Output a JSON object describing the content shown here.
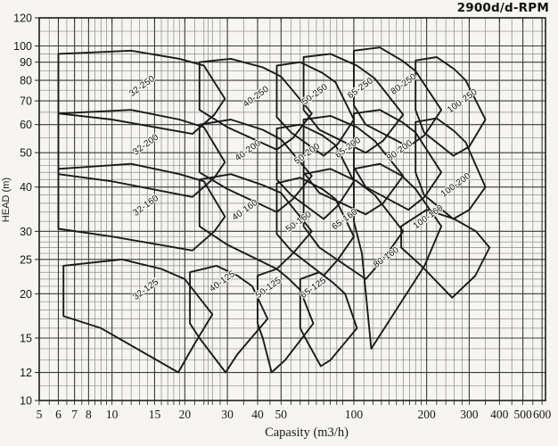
{
  "title": "2900d/d-RPM",
  "colors": {
    "paper": "#f6f5f2",
    "grid_minor": "#8a8a8a",
    "grid_major": "#3a3a3a",
    "frame": "#1f1f1f",
    "curve": "#1a1a1a",
    "text": "#161616"
  },
  "chart_data": {
    "type": "area",
    "subtype": "pump-selection-envelope-chart",
    "title": "2900d/d-RPM",
    "xlabel": "Capasity (m3/h)",
    "ylabel": "HEAD (m)",
    "x_scale": "log",
    "y_scale": "log",
    "xlim": [
      5,
      600
    ],
    "ylim": [
      10,
      120
    ],
    "grid": "on",
    "x_ticks": [
      5,
      6,
      7,
      8,
      10,
      15,
      20,
      30,
      40,
      50,
      100,
      200,
      300,
      400,
      500,
      600
    ],
    "y_ticks": [
      10,
      12,
      15,
      20,
      25,
      30,
      40,
      50,
      60,
      70,
      80,
      90,
      100,
      120
    ],
    "x_minor": [
      5.5,
      6.5,
      7.5,
      8.5,
      9,
      9.5,
      11,
      12,
      13,
      14,
      16,
      17,
      18,
      19,
      22,
      24,
      25,
      26,
      28,
      35,
      45,
      55,
      60,
      65,
      70,
      75,
      80,
      85,
      90,
      110,
      120,
      130,
      140,
      150,
      160,
      170,
      180,
      190,
      220,
      240,
      260,
      280,
      350,
      450,
      550
    ],
    "y_minor": [
      11,
      12,
      13,
      14,
      16,
      17,
      18,
      19,
      21,
      22,
      23,
      24,
      26,
      27,
      28,
      29,
      32,
      34,
      36,
      38,
      42,
      44,
      46,
      48,
      55,
      65,
      75,
      85,
      95,
      110
    ],
    "regions": [
      {
        "label": "32-250",
        "label_pos": [
          13.5,
          76
        ],
        "polygon": [
          [
            6,
            64.5
          ],
          [
            6,
            95
          ],
          [
            12,
            97
          ],
          [
            19,
            92
          ],
          [
            24,
            88
          ],
          [
            29.3,
            71
          ],
          [
            26.5,
            64
          ],
          [
            21.5,
            56.5
          ],
          [
            10,
            62
          ]
        ]
      },
      {
        "label": "40-250",
        "label_pos": [
          40,
          71
        ],
        "polygon": [
          [
            23,
            66
          ],
          [
            23,
            90
          ],
          [
            31,
            92
          ],
          [
            42,
            87
          ],
          [
            50,
            82
          ],
          [
            67,
            64.5
          ],
          [
            56,
            55
          ],
          [
            48,
            51
          ],
          [
            30,
            59
          ]
        ]
      },
      {
        "label": "50-250",
        "label_pos": [
          70,
          72
        ],
        "polygon": [
          [
            48,
            63
          ],
          [
            48,
            88
          ],
          [
            60,
            90
          ],
          [
            74,
            84
          ],
          [
            84,
            79
          ],
          [
            100,
            62
          ],
          [
            86,
            53
          ],
          [
            75,
            49
          ],
          [
            55,
            57
          ]
        ]
      },
      {
        "label": "65-250",
        "label_pos": [
          108,
          75
        ],
        "polygon": [
          [
            62,
            66
          ],
          [
            62,
            93
          ],
          [
            80,
            95
          ],
          [
            103,
            88
          ],
          [
            122,
            81
          ],
          [
            160,
            64
          ],
          [
            132,
            54
          ],
          [
            112,
            50
          ],
          [
            72,
            58
          ]
        ]
      },
      {
        "label": "80-250",
        "label_pos": [
          163,
          77
        ],
        "polygon": [
          [
            100,
            68
          ],
          [
            100,
            97
          ],
          [
            128,
            99
          ],
          [
            158,
            91
          ],
          [
            180,
            85
          ],
          [
            230,
            66
          ],
          [
            196,
            56
          ],
          [
            168,
            52
          ],
          [
            112,
            60
          ]
        ]
      },
      {
        "label": "100-250",
        "label_pos": [
          285,
          69
        ],
        "polygon": [
          [
            180,
            66
          ],
          [
            180,
            91
          ],
          [
            220,
            93
          ],
          [
            260,
            86
          ],
          [
            290,
            80
          ],
          [
            350,
            62
          ],
          [
            300,
            52
          ],
          [
            258,
            49
          ],
          [
            195,
            57
          ]
        ]
      },
      {
        "label": "32-200",
        "label_pos": [
          14,
          52
        ],
        "polygon": [
          [
            6,
            43.5
          ],
          [
            6,
            64.5
          ],
          [
            12,
            66
          ],
          [
            19,
            62
          ],
          [
            24,
            59
          ],
          [
            29.3,
            47
          ],
          [
            26.5,
            42.5
          ],
          [
            21.5,
            37.5
          ],
          [
            10,
            41.5
          ]
        ]
      },
      {
        "label": "40-200",
        "label_pos": [
          37,
          50
        ],
        "polygon": [
          [
            23,
            44
          ],
          [
            23,
            60
          ],
          [
            31,
            62
          ],
          [
            42,
            58
          ],
          [
            50,
            54.5
          ],
          [
            67,
            43
          ],
          [
            56,
            37
          ],
          [
            48,
            34
          ],
          [
            30,
            39.5
          ]
        ]
      },
      {
        "label": "50-200",
        "label_pos": [
          65,
          49
        ],
        "polygon": [
          [
            48,
            42
          ],
          [
            48,
            58.5
          ],
          [
            60,
            60
          ],
          [
            74,
            56
          ],
          [
            84,
            52.5
          ],
          [
            100,
            41.5
          ],
          [
            86,
            35.5
          ],
          [
            75,
            32.5
          ],
          [
            55,
            38
          ]
        ]
      },
      {
        "label": "65-200",
        "label_pos": [
          96,
          51
        ],
        "polygon": [
          [
            62,
            44
          ],
          [
            62,
            62
          ],
          [
            80,
            63.5
          ],
          [
            103,
            59
          ],
          [
            122,
            54
          ],
          [
            160,
            43
          ],
          [
            132,
            36
          ],
          [
            112,
            33.5
          ],
          [
            72,
            38.5
          ]
        ]
      },
      {
        "label": "80-200",
        "label_pos": [
          157,
          50
        ],
        "polygon": [
          [
            100,
            45.5
          ],
          [
            100,
            64.5
          ],
          [
            128,
            66
          ],
          [
            158,
            61
          ],
          [
            180,
            57
          ],
          [
            230,
            44
          ],
          [
            196,
            37.5
          ],
          [
            168,
            34.5
          ],
          [
            112,
            40
          ]
        ]
      },
      {
        "label": "100-200",
        "label_pos": [
          268,
          40
        ],
        "polygon": [
          [
            180,
            44
          ],
          [
            180,
            61
          ],
          [
            220,
            62.5
          ],
          [
            260,
            57.5
          ],
          [
            290,
            53.5
          ],
          [
            350,
            40
          ],
          [
            300,
            34.5
          ],
          [
            258,
            32.5
          ],
          [
            195,
            38
          ]
        ]
      },
      {
        "label": "32-160",
        "label_pos": [
          14,
          35
        ],
        "polygon": [
          [
            6,
            30.5
          ],
          [
            6,
            45
          ],
          [
            12,
            46.5
          ],
          [
            19,
            43.5
          ],
          [
            24,
            41.5
          ],
          [
            29.3,
            33
          ],
          [
            26.5,
            30
          ],
          [
            21.5,
            26.5
          ],
          [
            10,
            29
          ]
        ]
      },
      {
        "label": "40-160",
        "label_pos": [
          36,
          34
        ],
        "polygon": [
          [
            23,
            31
          ],
          [
            23,
            42
          ],
          [
            31,
            43.5
          ],
          [
            42,
            40.5
          ],
          [
            50,
            38.5
          ],
          [
            67,
            30
          ],
          [
            56,
            26
          ],
          [
            48,
            23.5
          ],
          [
            30,
            27.5
          ]
        ]
      },
      {
        "label": "50-160",
        "label_pos": [
          60,
          31.5
        ],
        "polygon": [
          [
            48,
            29.5
          ],
          [
            48,
            41
          ],
          [
            60,
            42.5
          ],
          [
            74,
            39.5
          ],
          [
            84,
            37
          ],
          [
            100,
            29
          ],
          [
            86,
            25
          ],
          [
            75,
            22.5
          ],
          [
            55,
            26.5
          ]
        ]
      },
      {
        "label": "65-160",
        "label_pos": [
          93,
          32
        ],
        "polygon": [
          [
            62,
            31
          ],
          [
            62,
            43.5
          ],
          [
            80,
            45
          ],
          [
            103,
            41.5
          ],
          [
            122,
            38
          ],
          [
            160,
            30
          ],
          [
            132,
            25
          ],
          [
            112,
            22
          ],
          [
            72,
            27
          ]
        ]
      },
      {
        "label": "80-160",
        "label_pos": [
          138,
          25
        ],
        "polygon": [
          [
            100,
            32
          ],
          [
            100,
            45
          ],
          [
            128,
            46.5
          ],
          [
            158,
            43
          ],
          [
            180,
            39.5
          ],
          [
            230,
            31
          ],
          [
            196,
            24
          ],
          [
            118,
            14
          ],
          [
            108,
            26
          ]
        ]
      },
      {
        "label": "100-160",
        "label_pos": [
          206,
          32.5
        ],
        "polygon": [
          [
            157,
            27
          ],
          [
            157,
            31
          ],
          [
            200,
            34.5
          ],
          [
            260,
            32.5
          ],
          [
            320,
            30
          ],
          [
            364,
            27
          ],
          [
            318,
            22.5
          ],
          [
            255,
            19.5
          ],
          [
            190,
            24
          ]
        ]
      },
      {
        "label": "32-125",
        "label_pos": [
          14,
          20.3
        ],
        "polygon": [
          [
            6.3,
            17.3
          ],
          [
            6.3,
            24
          ],
          [
            11,
            25
          ],
          [
            16,
            23.5
          ],
          [
            20,
            22
          ],
          [
            26,
            17.5
          ],
          [
            22,
            14.5
          ],
          [
            18.8,
            12
          ],
          [
            9,
            16
          ]
        ]
      },
      {
        "label": "40-125",
        "label_pos": [
          29,
          21.4
        ],
        "polygon": [
          [
            21,
            16.5
          ],
          [
            21,
            23
          ],
          [
            27,
            24
          ],
          [
            33,
            22.5
          ],
          [
            38,
            21
          ],
          [
            44,
            17
          ],
          [
            33,
            13.5
          ],
          [
            29.5,
            12
          ],
          [
            23,
            15
          ]
        ]
      },
      {
        "label": "50-125",
        "label_pos": [
          45,
          20.5
        ],
        "polygon": [
          [
            40,
            16.5
          ],
          [
            40,
            22.5
          ],
          [
            48,
            23.5
          ],
          [
            54,
            22
          ],
          [
            60,
            20.5
          ],
          [
            68,
            16.5
          ],
          [
            52,
            13
          ],
          [
            45.7,
            12
          ],
          [
            42,
            15
          ]
        ]
      },
      {
        "label": "65-125",
        "label_pos": [
          69,
          20.5
        ],
        "polygon": [
          [
            60,
            16
          ],
          [
            60,
            22
          ],
          [
            72,
            23
          ],
          [
            82,
            21.5
          ],
          [
            92,
            20
          ],
          [
            103,
            16
          ],
          [
            80,
            13
          ],
          [
            73,
            12.5
          ],
          [
            63,
            15
          ]
        ]
      }
    ],
    "region_label_angle_deg": -36
  }
}
